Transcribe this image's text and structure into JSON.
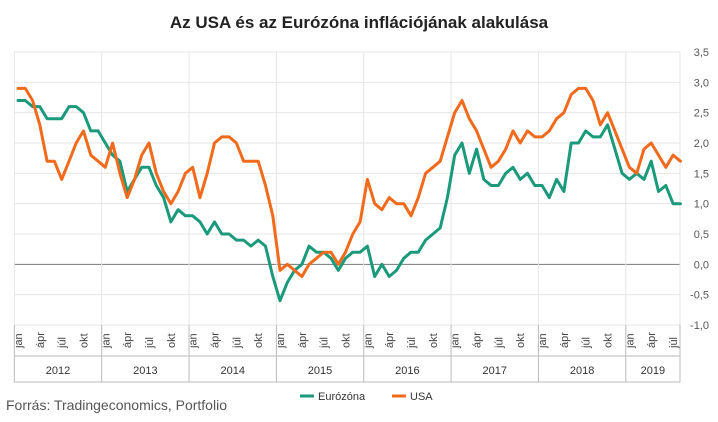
{
  "chart_data": {
    "type": "line",
    "title": "Az USA és az Eurózóna inflációjának alakulása",
    "source": "Forrás: Tradingeconomics, Portfolio",
    "ylim": [
      -1.0,
      3.5
    ],
    "y_ticks": [
      "-1,0",
      "-0,5",
      "0,0",
      "0,5",
      "1,0",
      "1,5",
      "2,0",
      "2,5",
      "3,0",
      "3,5"
    ],
    "y_tick_values": [
      -1.0,
      -0.5,
      0.0,
      0.5,
      1.0,
      1.5,
      2.0,
      2.5,
      3.0,
      3.5
    ],
    "x_start": "2012-01",
    "month_labels": [
      "jan",
      "ápr",
      "júl",
      "okt"
    ],
    "years": [
      "2012",
      "2013",
      "2014",
      "2015",
      "2016",
      "2017",
      "2018",
      "2019"
    ],
    "grid": true,
    "legend_position": "bottom",
    "series": [
      {
        "name": "Eurózóna",
        "color": "#1a9a7a",
        "values": [
          2.7,
          2.7,
          2.6,
          2.6,
          2.4,
          2.4,
          2.4,
          2.6,
          2.6,
          2.5,
          2.2,
          2.2,
          2.0,
          1.8,
          1.7,
          1.2,
          1.4,
          1.6,
          1.6,
          1.3,
          1.1,
          0.7,
          0.9,
          0.8,
          0.8,
          0.7,
          0.5,
          0.7,
          0.5,
          0.5,
          0.4,
          0.4,
          0.3,
          0.4,
          0.3,
          -0.2,
          -0.6,
          -0.3,
          -0.1,
          0.0,
          0.3,
          0.2,
          0.2,
          0.1,
          -0.1,
          0.1,
          0.2,
          0.2,
          0.3,
          -0.2,
          0.0,
          -0.2,
          -0.1,
          0.1,
          0.2,
          0.2,
          0.4,
          0.5,
          0.6,
          1.1,
          1.8,
          2.0,
          1.5,
          1.9,
          1.4,
          1.3,
          1.3,
          1.5,
          1.6,
          1.4,
          1.5,
          1.3,
          1.3,
          1.1,
          1.4,
          1.2,
          2.0,
          2.0,
          2.2,
          2.1,
          2.1,
          2.3,
          1.9,
          1.5,
          1.4,
          1.5,
          1.4,
          1.7,
          1.2,
          1.3,
          1.0,
          1.0
        ]
      },
      {
        "name": "USA",
        "color": "#f26a1b",
        "values": [
          2.9,
          2.9,
          2.7,
          2.3,
          1.7,
          1.7,
          1.4,
          1.7,
          2.0,
          2.2,
          1.8,
          1.7,
          1.6,
          2.0,
          1.5,
          1.1,
          1.4,
          1.8,
          2.0,
          1.5,
          1.2,
          1.0,
          1.2,
          1.5,
          1.6,
          1.1,
          1.5,
          2.0,
          2.1,
          2.1,
          2.0,
          1.7,
          1.7,
          1.7,
          1.3,
          0.8,
          -0.1,
          0.0,
          -0.1,
          -0.2,
          0.0,
          0.1,
          0.2,
          0.2,
          0.0,
          0.2,
          0.5,
          0.7,
          1.4,
          1.0,
          0.9,
          1.1,
          1.0,
          1.0,
          0.8,
          1.1,
          1.5,
          1.6,
          1.7,
          2.1,
          2.5,
          2.7,
          2.4,
          2.2,
          1.9,
          1.6,
          1.7,
          1.9,
          2.2,
          2.0,
          2.2,
          2.1,
          2.1,
          2.2,
          2.4,
          2.5,
          2.8,
          2.9,
          2.9,
          2.7,
          2.3,
          2.5,
          2.2,
          1.9,
          1.6,
          1.5,
          1.9,
          2.0,
          1.8,
          1.6,
          1.8,
          1.7
        ]
      }
    ]
  }
}
